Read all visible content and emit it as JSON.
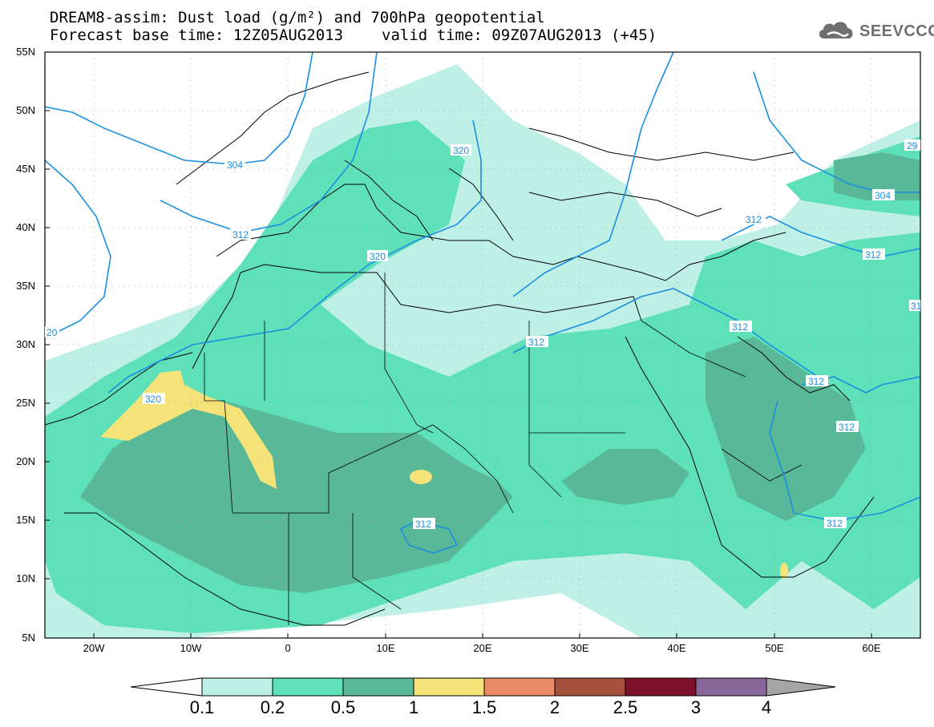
{
  "title": {
    "line1": "DREAM8-assim: Dust load (g/m²) and 700hPa geopotential",
    "forecast_base": "Forecast base time: 12Z05AUG2013",
    "valid_time": "valid time: 09Z07AUG2013 (+45)"
  },
  "logo": {
    "text": "SEEVCCC",
    "icon": "cloud-icon"
  },
  "map": {
    "lat_labels": [
      "55N",
      "50N",
      "45N",
      "40N",
      "35N",
      "30N",
      "25N",
      "20N",
      "15N",
      "10N",
      "5N"
    ],
    "lon_labels": [
      "20W",
      "10W",
      "0",
      "10E",
      "20E",
      "30E",
      "40E",
      "50E",
      "60E"
    ],
    "contour_labels": [
      "304",
      "312",
      "320",
      "320",
      "20",
      "320",
      "312",
      "312",
      "312",
      "312",
      "304",
      "312",
      "312",
      "312",
      "312",
      "29",
      "31"
    ]
  },
  "colorbar": {
    "labels": [
      "0.1",
      "0.2",
      "0.5",
      "1",
      "1.5",
      "2",
      "2.5",
      "3",
      "4"
    ],
    "colors": [
      "#bff0e6",
      "#5ee0b8",
      "#59b897",
      "#f5e37a",
      "#e88b66",
      "#a4503c",
      "#7d0f2a",
      "#8a679b",
      "#a6a6a6"
    ]
  },
  "colors": {
    "land_border": "#000000",
    "contour": "#1a8fe0"
  }
}
